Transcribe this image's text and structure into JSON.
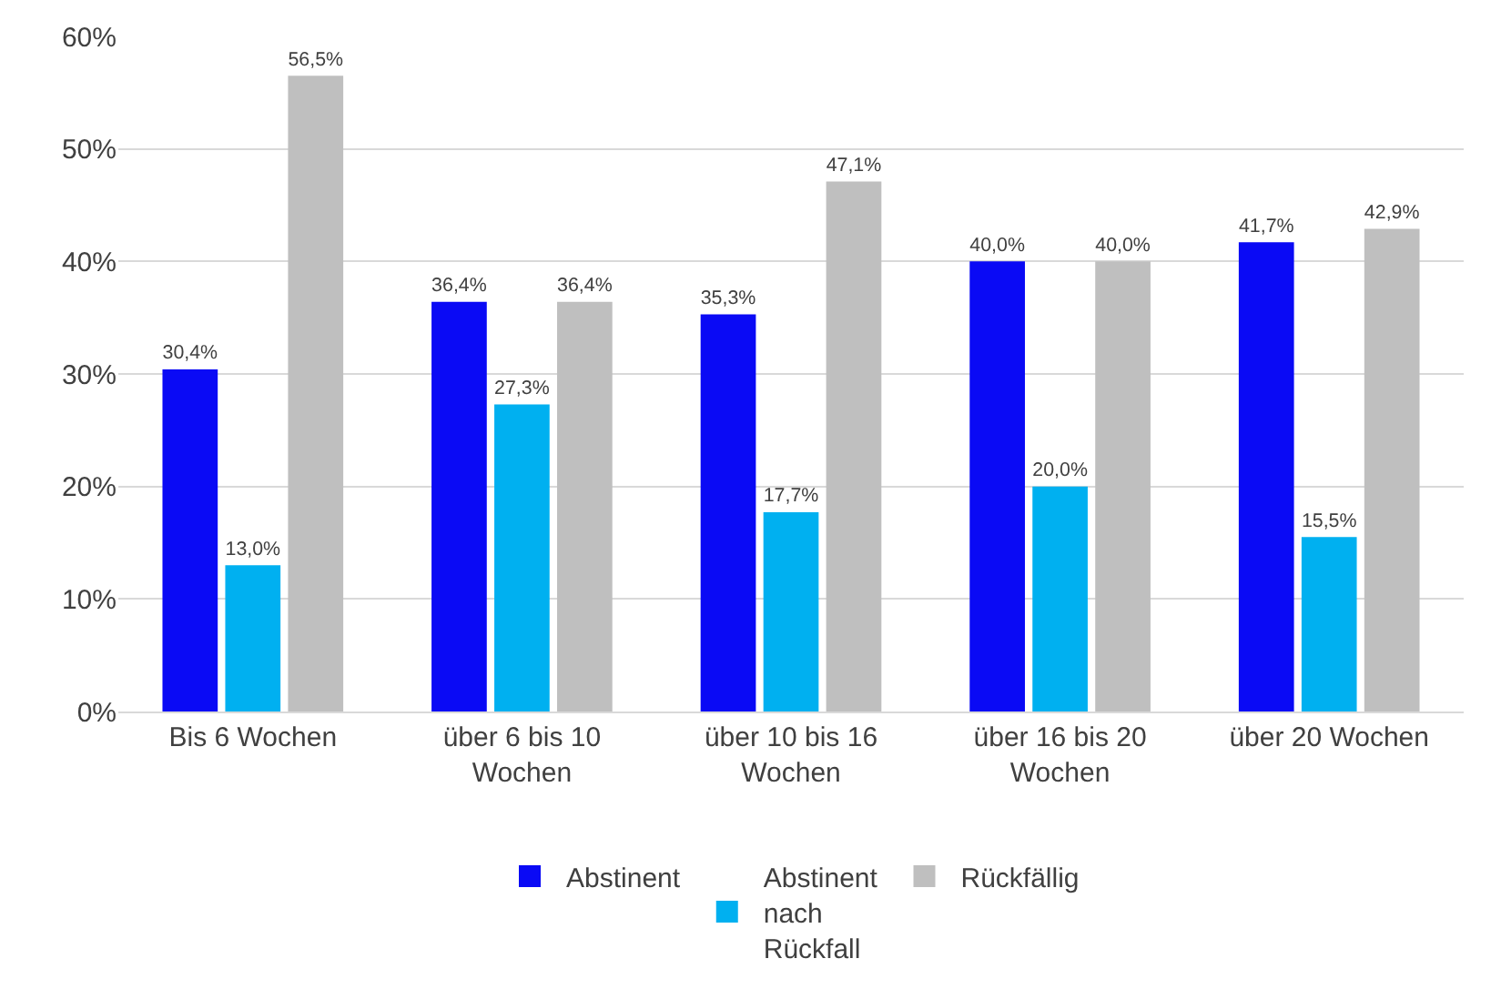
{
  "chart_data": {
    "type": "bar",
    "categories": [
      "Bis 6 Wochen",
      "über 6 bis 10 Wochen",
      "über 10 bis 16 Wochen",
      "über 16 bis 20 Wochen",
      "über 20 Wochen"
    ],
    "series": [
      {
        "name": "Abstinent",
        "color": "#0a0af5",
        "values": [
          30.4,
          36.4,
          35.3,
          40.0,
          41.7
        ],
        "value_labels": [
          "30,4%",
          "36,4%",
          "35,3%",
          "40,0%",
          "41,7%"
        ]
      },
      {
        "name": "Abstinent nach Rückfall",
        "color": "#00b0f0",
        "values": [
          13.0,
          27.3,
          17.7,
          20.0,
          15.5
        ],
        "value_labels": [
          "13,0%",
          "27,3%",
          "17,7%",
          "20,0%",
          "15,5%"
        ]
      },
      {
        "name": "Rückfällig",
        "color": "#bfbfbf",
        "values": [
          56.5,
          36.4,
          47.1,
          40.0,
          42.9
        ],
        "value_labels": [
          "56,5%",
          "36,4%",
          "47,1%",
          "40,0%",
          "42,9%"
        ]
      }
    ],
    "ylim": [
      0,
      60
    ],
    "yticks": [
      {
        "value": 0,
        "label": "0%"
      },
      {
        "value": 10,
        "label": "10%"
      },
      {
        "value": 20,
        "label": "20%"
      },
      {
        "value": 30,
        "label": "30%"
      },
      {
        "value": 40,
        "label": "40%"
      },
      {
        "value": 50,
        "label": "50%"
      },
      {
        "value": 60,
        "label": "60%"
      }
    ],
    "grid": "y",
    "legend": "bottom"
  }
}
